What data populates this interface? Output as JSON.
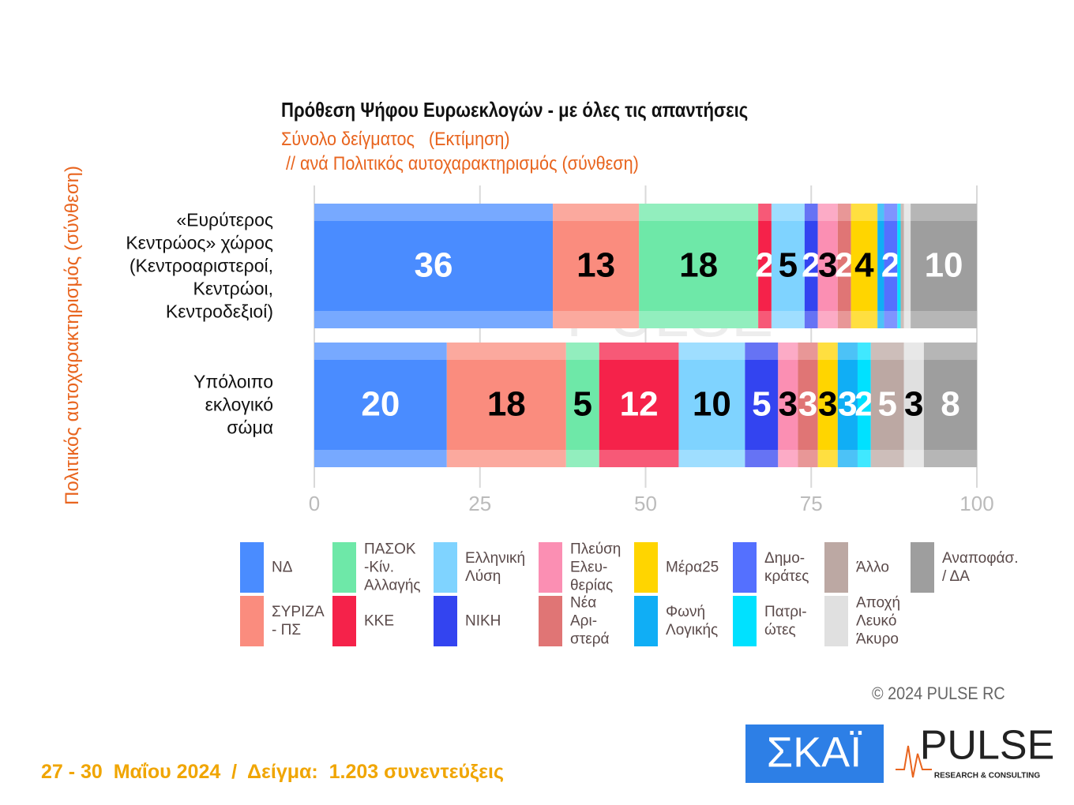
{
  "chart_data": {
    "type": "stacked-barh",
    "title": "Πρόθεση Ψήφου Ευρωεκλογών - με όλες τις απαντήσεις",
    "subtitle": "Σύνολο δείγματος   (Εκτίμηση)",
    "subtitle2": " // ανά Πολιτικός αυτοχαρακτηρισμός (σύνθεση)",
    "ylabel": "Πολιτικός αυτοχαρακτηρισμός (σύνθεση)",
    "categories": [
      "«Ευρύτερος\nΚεντρώος» χώρος\n(Κεντροαριστεροί,\nΚεντρώοι,\nΚεντροδεξιοί)",
      "Υπόλοιπο\nεκλογικό\nσώμα"
    ],
    "xlim": [
      0,
      100
    ],
    "xticks": [
      0,
      25,
      50,
      75,
      100
    ],
    "grid": true,
    "series": [
      {
        "name": "ΝΔ",
        "color": "#4a8cff",
        "label_color": "#fff",
        "values": [
          36,
          20
        ]
      },
      {
        "name": "ΣΥΡΙΖΑ\n- ΠΣ",
        "color": "#fa8c7e",
        "label_color": "#000",
        "values": [
          13,
          18
        ]
      },
      {
        "name": "ΠΑΣΟΚ\n-Κίν.\nΑλλαγής",
        "color": "#6ee8a8",
        "label_color": "#000",
        "values": [
          18,
          5
        ]
      },
      {
        "name": "ΚΚΕ",
        "color": "#f5224a",
        "label_color": "#fff",
        "values": [
          2,
          12
        ]
      },
      {
        "name": "Ελληνική\nΛύση",
        "color": "#7fd3ff",
        "label_color": "#000",
        "values": [
          5,
          10
        ]
      },
      {
        "name": "ΝΙΚΗ",
        "color": "#3344f0",
        "label_color": "#fff",
        "values": [
          2,
          5
        ]
      },
      {
        "name": "Πλεύση\nΕλευ-\nθερίας",
        "color": "#fb8fb3",
        "label_color": "#000",
        "values": [
          3,
          3
        ]
      },
      {
        "name": "Νέα\nΑρι-\nστερά",
        "color": "#e07575",
        "label_color": "#fff",
        "values": [
          2,
          3
        ]
      },
      {
        "name": "Μέρα25",
        "color": "#ffd500",
        "label_color": "#000",
        "values": [
          4,
          3
        ]
      },
      {
        "name": "Φωνή\nΛογικής",
        "color": "#10aef5",
        "label_color": "#fff",
        "values": [
          1,
          3
        ]
      },
      {
        "name": "Δημο-\nκράτες",
        "color": "#5470ff",
        "label_color": "#fff",
        "values": [
          2,
          0
        ]
      },
      {
        "name": "Πατρι-\nώτες",
        "color": "#00e1ff",
        "label_color": "#fff",
        "values": [
          0.5,
          2
        ]
      },
      {
        "name": "Άλλο",
        "color": "#bca8a3",
        "label_color": "#fff",
        "values": [
          0.5,
          5
        ]
      },
      {
        "name": "Αποχή\nΛευκό\nΆκυρο",
        "color": "#e0e0e0",
        "label_color": "#000",
        "values": [
          1,
          3
        ]
      },
      {
        "name": "Αναποφάσ.\n/ ΔΑ",
        "color": "#9e9e9e",
        "label_color": "#fff",
        "values": [
          10,
          8
        ]
      }
    ]
  },
  "footer": {
    "date": "27 - 30  Μαΐου 2024  /  Δείγμα:  1.203 συνεντεύξεις",
    "copyright": "© 2024 PULSE RC"
  },
  "logos": {
    "skai": "ΣΚΑΪ",
    "pulse": "PULSE",
    "pulse_sub": "RESEARCH & CONSULTING",
    "watermark": "PULSE"
  }
}
